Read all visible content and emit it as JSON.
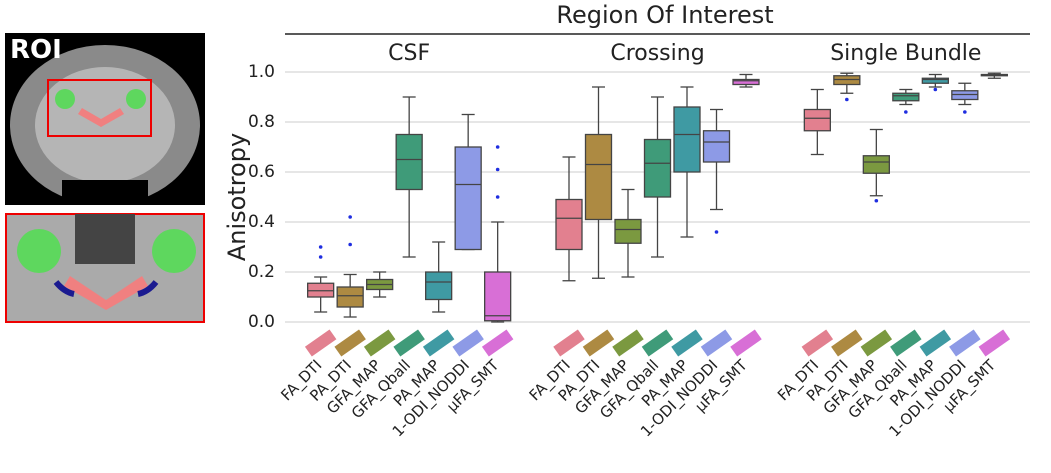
{
  "chart_data": {
    "type": "box",
    "title": "Region Of Interest",
    "image_label": "ROI",
    "y_label": "Anisotropy",
    "categories": [
      "CSF",
      "Crossing",
      "Single Bundle"
    ],
    "ylim": [
      0,
      1.04
    ],
    "yticks": [
      {
        "value": 0,
        "label": "0.0"
      },
      {
        "value": 0.2,
        "label": "0.2"
      },
      {
        "value": 0.4,
        "label": "0.4"
      },
      {
        "value": 0.6,
        "label": "0.6"
      },
      {
        "value": 0.8,
        "label": "0.8"
      },
      {
        "value": 1.0,
        "label": "1.0"
      }
    ],
    "grid": true,
    "series": [
      {
        "name": "FA_DTI",
        "color": "#e2808f",
        "values": [
          {
            "low": 0.04,
            "q1": 0.1,
            "median": 0.125,
            "q3": 0.155,
            "high": 0.18,
            "outliers": [
              0.26,
              0.3
            ]
          },
          {
            "low": 0.165,
            "q1": 0.29,
            "median": 0.415,
            "q3": 0.49,
            "high": 0.66,
            "outliers": []
          },
          {
            "low": 0.67,
            "q1": 0.765,
            "median": 0.815,
            "q3": 0.85,
            "high": 0.93,
            "outliers": []
          }
        ]
      },
      {
        "name": "PA_DTI",
        "color": "#ad8a42",
        "values": [
          {
            "low": 0.02,
            "q1": 0.06,
            "median": 0.105,
            "q3": 0.14,
            "high": 0.19,
            "outliers": [
              0.31,
              0.42
            ]
          },
          {
            "low": 0.175,
            "q1": 0.41,
            "median": 0.63,
            "q3": 0.75,
            "high": 0.94,
            "outliers": []
          },
          {
            "low": 0.915,
            "q1": 0.95,
            "median": 0.97,
            "q3": 0.985,
            "high": 0.995,
            "outliers": [
              0.89
            ]
          }
        ]
      },
      {
        "name": "GFA_MAP",
        "color": "#7b9940",
        "values": [
          {
            "low": 0.1,
            "q1": 0.13,
            "median": 0.15,
            "q3": 0.17,
            "high": 0.2,
            "outliers": []
          },
          {
            "low": 0.18,
            "q1": 0.315,
            "median": 0.37,
            "q3": 0.41,
            "high": 0.53,
            "outliers": []
          },
          {
            "low": 0.505,
            "q1": 0.595,
            "median": 0.64,
            "q3": 0.665,
            "high": 0.77,
            "outliers": [
              0.485
            ]
          }
        ]
      },
      {
        "name": "GFA_Qball",
        "color": "#3f9b79",
        "values": [
          {
            "low": 0.26,
            "q1": 0.53,
            "median": 0.65,
            "q3": 0.75,
            "high": 0.9,
            "outliers": []
          },
          {
            "low": 0.26,
            "q1": 0.5,
            "median": 0.635,
            "q3": 0.73,
            "high": 0.9,
            "outliers": []
          },
          {
            "low": 0.87,
            "q1": 0.885,
            "median": 0.905,
            "q3": 0.915,
            "high": 0.93,
            "outliers": [
              0.84
            ]
          }
        ]
      },
      {
        "name": "PA_MAP",
        "color": "#3f9aa3",
        "values": [
          {
            "low": 0.04,
            "q1": 0.09,
            "median": 0.16,
            "q3": 0.2,
            "high": 0.32,
            "outliers": []
          },
          {
            "low": 0.34,
            "q1": 0.6,
            "median": 0.75,
            "q3": 0.86,
            "high": 0.94,
            "outliers": []
          },
          {
            "low": 0.94,
            "q1": 0.955,
            "median": 0.97,
            "q3": 0.975,
            "high": 0.99,
            "outliers": [
              0.93
            ]
          }
        ]
      },
      {
        "name": "1-ODI_NODDI",
        "color": "#8d9ae6",
        "values": [
          {
            "low": 0.29,
            "q1": 0.29,
            "median": 0.55,
            "q3": 0.7,
            "high": 0.83,
            "outliers": []
          },
          {
            "low": 0.45,
            "q1": 0.64,
            "median": 0.72,
            "q3": 0.765,
            "high": 0.85,
            "outliers": [
              0.36
            ]
          },
          {
            "low": 0.87,
            "q1": 0.89,
            "median": 0.91,
            "q3": 0.925,
            "high": 0.955,
            "outliers": [
              0.84
            ]
          }
        ]
      },
      {
        "name": "µFA_SMT",
        "color": "#d86fd6",
        "values": [
          {
            "low": 0,
            "q1": 0.005,
            "median": 0.025,
            "q3": 0.2,
            "high": 0.4,
            "outliers": [
              0.5,
              0.61,
              0.7
            ]
          },
          {
            "low": 0.94,
            "q1": 0.95,
            "median": 0.965,
            "q3": 0.97,
            "high": 0.99,
            "outliers": []
          },
          {
            "low": 0.975,
            "q1": 0.985,
            "median": 0.988,
            "q3": 0.99,
            "high": 0.995,
            "outliers": []
          }
        ]
      }
    ]
  }
}
